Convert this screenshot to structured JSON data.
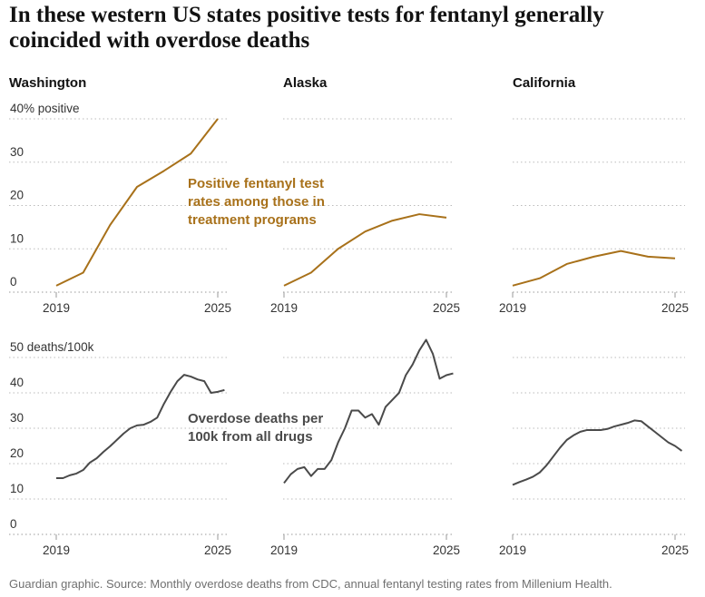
{
  "title": "In these western US states positive tests for fentanyl generally coincided with overdose deaths",
  "source": "Guardian graphic. Source: Monthly overdose deaths from CDC, annual fentanyl testing rates from Millenium Health.",
  "chart_data": [
    {
      "type": "line",
      "title": "Washington",
      "annotation": "Positive fentanyl test rates among those in treatment programs",
      "x": [
        2019,
        2020,
        2021,
        2022,
        2023,
        2024,
        2025
      ],
      "series": [
        {
          "color": "#a8711a",
          "values": [
            1.5,
            4.5,
            15.5,
            24.3,
            28,
            32,
            40
          ]
        }
      ],
      "xlim": [
        2019,
        2025
      ],
      "xticks": [
        2019,
        2025
      ],
      "ylim": [
        0,
        42
      ],
      "yticks": [
        0,
        10,
        20,
        30,
        {
          "value": 40,
          "label": "40% positive"
        }
      ],
      "ytick_labels": true,
      "grid": true
    },
    {
      "type": "line",
      "title": "Alaska",
      "x": [
        2019,
        2020,
        2021,
        2022,
        2023,
        2024,
        2025
      ],
      "series": [
        {
          "color": "#a8711a",
          "values": [
            1.5,
            4.5,
            10,
            14,
            16.5,
            18,
            17.2
          ]
        }
      ],
      "xlim": [
        2019,
        2025
      ],
      "xticks": [
        2019,
        2025
      ],
      "ylim": [
        0,
        42
      ],
      "yticks": [
        0,
        10,
        20,
        30,
        40
      ],
      "ytick_labels": false,
      "grid": true
    },
    {
      "type": "line",
      "title": "California",
      "x": [
        2019,
        2020,
        2021,
        2022,
        2023,
        2024,
        2025
      ],
      "series": [
        {
          "color": "#a8711a",
          "values": [
            1.5,
            3.2,
            6.5,
            8.2,
            9.5,
            8.2,
            7.8
          ]
        }
      ],
      "xlim": [
        2019,
        2025
      ],
      "xticks": [
        2019,
        2025
      ],
      "ylim": [
        0,
        42
      ],
      "yticks": [
        0,
        10,
        20,
        30,
        40
      ],
      "ytick_labels": false,
      "grid": true
    },
    {
      "type": "line",
      "annotation": "Overdose deaths per 100k from all drugs",
      "x": [
        2019,
        2019.25,
        2019.5,
        2019.75,
        2020,
        2020.25,
        2020.5,
        2020.75,
        2021,
        2021.25,
        2021.5,
        2021.75,
        2022,
        2022.25,
        2022.5,
        2022.75,
        2023,
        2023.25,
        2023.5,
        2023.75,
        2024,
        2024.25,
        2024.5,
        2024.75,
        2025,
        2025.25
      ],
      "series": [
        {
          "color": "#4a4a4a",
          "values": [
            15.9,
            15.9,
            16.7,
            17.2,
            18.2,
            20.3,
            21.5,
            23.3,
            24.9,
            26.7,
            28.5,
            30,
            30.8,
            31,
            31.8,
            33,
            36.9,
            40.3,
            43.3,
            45.1,
            44.6,
            43.8,
            43.3,
            40,
            40.3,
            40.8
          ]
        }
      ],
      "xlim": [
        2019,
        2025
      ],
      "xticks": [
        2019,
        2025
      ],
      "ylim": [
        0,
        56
      ],
      "yticks": [
        0,
        10,
        20,
        30,
        40,
        {
          "value": 50,
          "label": "50 deaths/100k"
        }
      ],
      "ytick_labels": true,
      "grid": true
    },
    {
      "type": "line",
      "x": [
        2019,
        2019.25,
        2019.5,
        2019.75,
        2020,
        2020.25,
        2020.5,
        2020.75,
        2021,
        2021.25,
        2021.5,
        2021.75,
        2022,
        2022.25,
        2022.5,
        2022.75,
        2023,
        2023.25,
        2023.5,
        2023.75,
        2024,
        2024.25,
        2024.5,
        2024.75,
        2025,
        2025.25
      ],
      "series": [
        {
          "color": "#4a4a4a",
          "values": [
            14.5,
            17,
            18.5,
            19,
            16.5,
            18.5,
            18.5,
            21,
            26,
            30,
            35,
            35,
            33,
            34,
            31,
            36,
            38,
            40,
            45,
            48,
            52,
            55,
            51,
            44,
            45,
            45.5
          ]
        }
      ],
      "xlim": [
        2019,
        2025
      ],
      "xticks": [
        2019,
        2025
      ],
      "ylim": [
        0,
        56
      ],
      "yticks": [
        0,
        10,
        20,
        30,
        40,
        50
      ],
      "ytick_labels": false,
      "grid": true
    },
    {
      "type": "line",
      "x": [
        2019,
        2019.25,
        2019.5,
        2019.75,
        2020,
        2020.25,
        2020.5,
        2020.75,
        2021,
        2021.25,
        2021.5,
        2021.75,
        2022,
        2022.25,
        2022.5,
        2022.75,
        2023,
        2023.25,
        2023.5,
        2023.75,
        2024,
        2024.25,
        2024.5,
        2024.75,
        2025,
        2025.25
      ],
      "series": [
        {
          "color": "#4a4a4a",
          "values": [
            14,
            14.8,
            15.5,
            16.3,
            17.5,
            19.5,
            22,
            24.5,
            26.7,
            28,
            29,
            29.5,
            29.5,
            29.5,
            29.8,
            30.5,
            31,
            31.5,
            32.2,
            32,
            30.5,
            29,
            27.5,
            26,
            25,
            23.6
          ]
        }
      ],
      "xlim": [
        2019,
        2025
      ],
      "xticks": [
        2019,
        2025
      ],
      "ylim": [
        0,
        56
      ],
      "yticks": [
        0,
        10,
        20,
        30,
        40,
        50
      ],
      "ytick_labels": false,
      "grid": true
    }
  ]
}
